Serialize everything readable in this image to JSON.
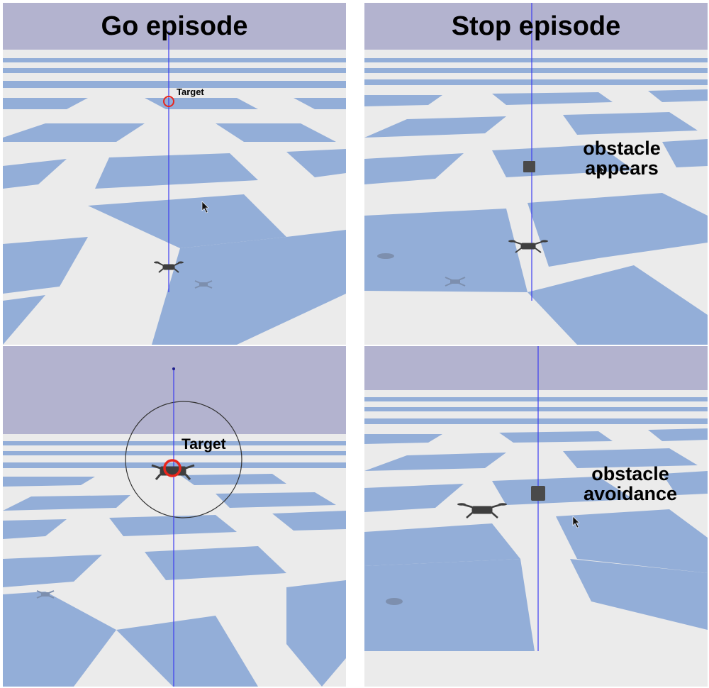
{
  "panels": {
    "go": {
      "heading": "Go episode",
      "target_label": "Target"
    },
    "stop": {
      "heading": "Stop episode",
      "obstacle_label_line1": "obstacle",
      "obstacle_label_line2": "appears"
    },
    "go_zoom": {
      "target_label": "Target"
    },
    "stop_avoid": {
      "obstacle_label_line1": "obstacle",
      "obstacle_label_line2": "avoidance"
    }
  },
  "colors": {
    "sky": "#b3b3cf",
    "tile_blue": "#93aed8",
    "tile_white": "#ebebeb",
    "target_ring": "#e8261c",
    "vertical_line": "#3c3cf0"
  },
  "icons": [
    "drone-icon",
    "drone-shadow-icon",
    "target-ring-icon",
    "obstacle-cube-icon",
    "mouse-cursor-icon"
  ]
}
